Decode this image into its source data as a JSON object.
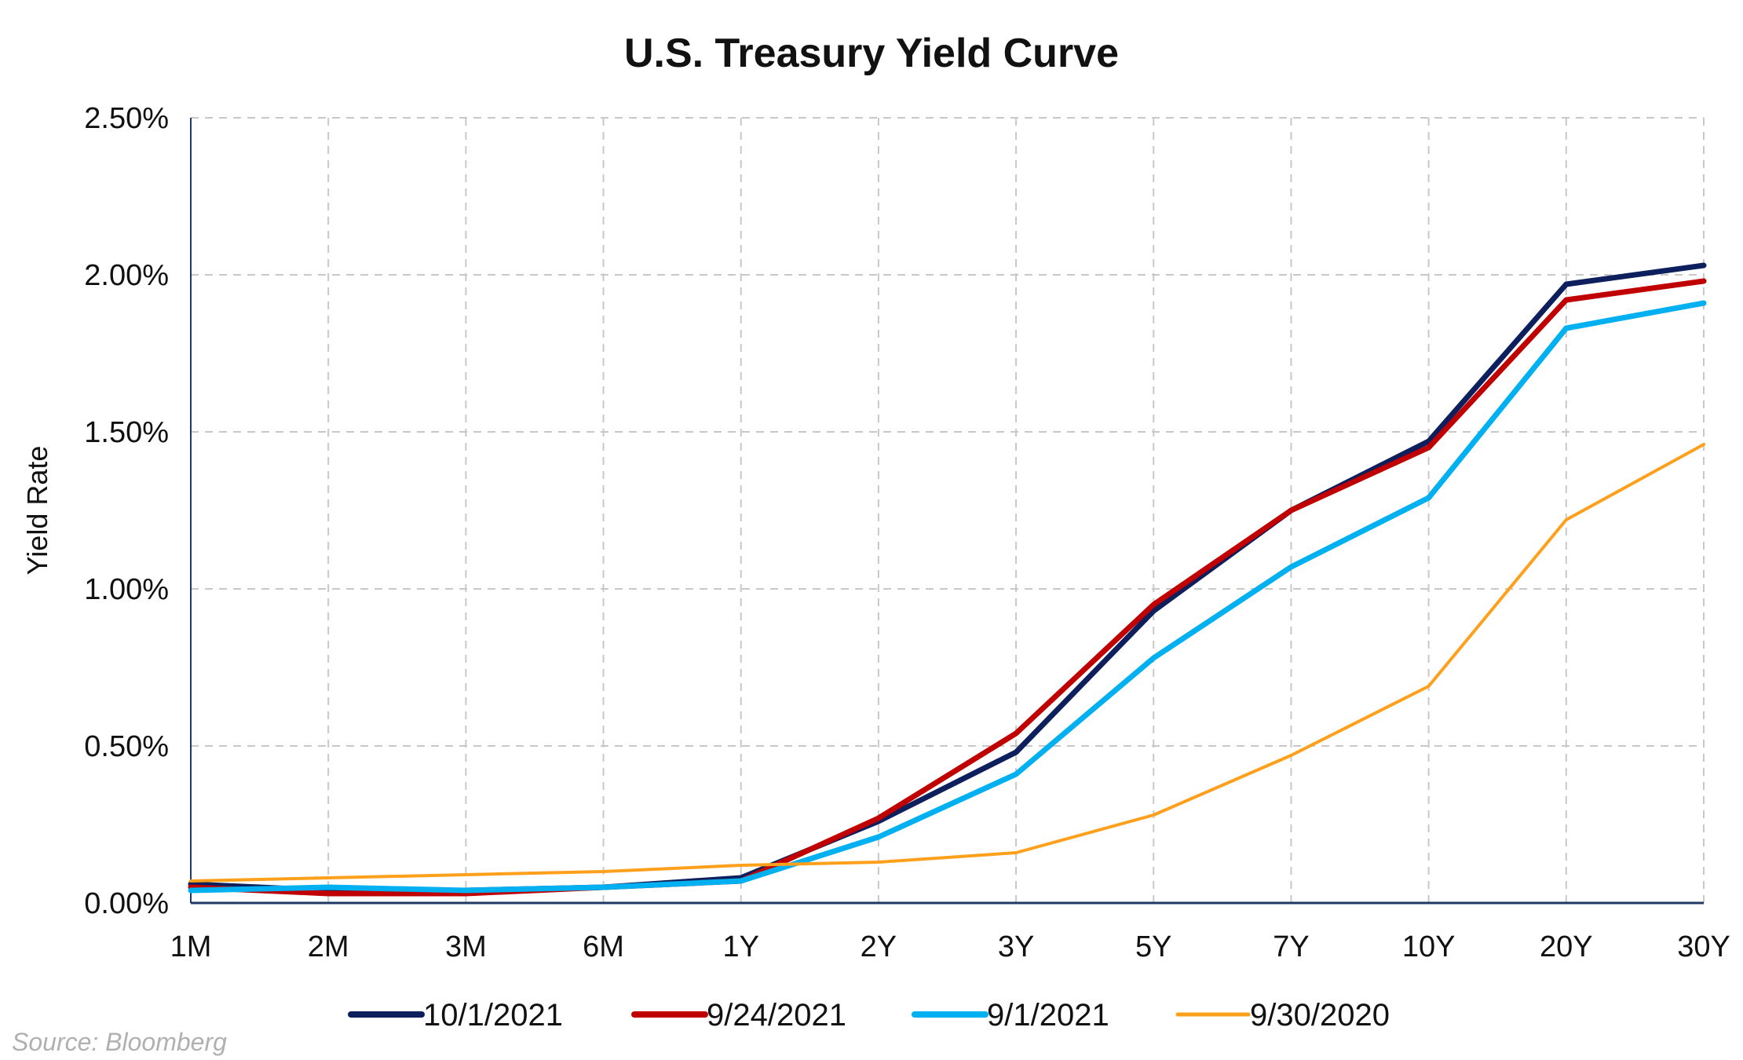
{
  "chart_data": {
    "type": "line",
    "title": "U.S. Treasury Yield Curve",
    "xlabel": "",
    "ylabel": "Yield Rate",
    "categories": [
      "1M",
      "2M",
      "3M",
      "6M",
      "1Y",
      "2Y",
      "3Y",
      "5Y",
      "7Y",
      "10Y",
      "20Y",
      "30Y"
    ],
    "ylim": [
      0,
      0.025
    ],
    "yticks": [
      0,
      0.005,
      0.01,
      0.015,
      0.02,
      0.025
    ],
    "ytick_labels": [
      "0.00%",
      "0.50%",
      "1.00%",
      "1.50%",
      "2.00%",
      "2.50%"
    ],
    "grid": true,
    "grid_style": "dashed",
    "legend_position": "bottom",
    "series": [
      {
        "name": "10/1/2021",
        "color": "#0d1f5c",
        "width": "thick",
        "values": [
          0.0006,
          0.0004,
          0.0004,
          0.0005,
          0.0008,
          0.0026,
          0.0048,
          0.0093,
          0.0125,
          0.0147,
          0.0197,
          0.0203
        ]
      },
      {
        "name": "9/24/2021",
        "color": "#c00000",
        "width": "thick",
        "values": [
          0.0005,
          0.0003,
          0.0003,
          0.0005,
          0.0007,
          0.0027,
          0.0054,
          0.0095,
          0.0125,
          0.0145,
          0.0192,
          0.0198
        ]
      },
      {
        "name": "9/1/2021",
        "color": "#00b0f0",
        "width": "thick",
        "values": [
          0.0004,
          0.0005,
          0.0004,
          0.0005,
          0.0007,
          0.0021,
          0.0041,
          0.0078,
          0.0107,
          0.0129,
          0.0183,
          0.0191
        ]
      },
      {
        "name": "9/30/2020",
        "color": "#ffa01c",
        "width": "thin",
        "values": [
          0.0007,
          0.0008,
          0.0009,
          0.001,
          0.0012,
          0.0013,
          0.0016,
          0.0028,
          0.0047,
          0.0069,
          0.0122,
          0.0146
        ]
      }
    ]
  },
  "source": "Source: Bloomberg"
}
